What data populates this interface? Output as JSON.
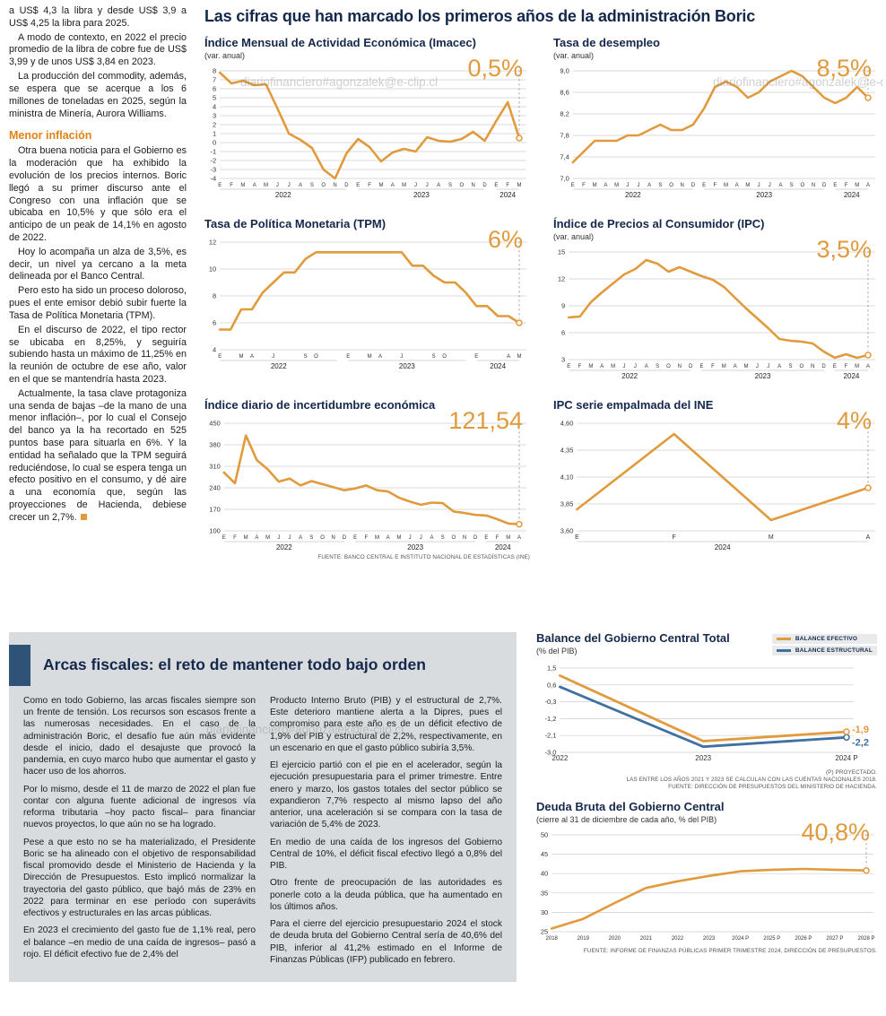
{
  "watermark": "diariofinanciero#agonzalek@e-clip.cl",
  "accent_color": "#E19A3C",
  "blue_color": "#3F6FA3",
  "page": {
    "main_title": "Las cifras que han marcado los primeros años de la administración Boric"
  },
  "left_column": {
    "paragraphs_top": [
      "a US$ 4,3 la libra y desde US$ 3,9 a US$ 4,25 la libra para 2025.",
      "A modo de contexto, en 2022 el precio promedio de la libra de cobre fue de US$ 3,99 y de unos US$ 3,84 en 2023.",
      "La producción del commodity, además, se espera que se acerque a los 6 millones de toneladas en 2025, según la ministra de Minería, Aurora Williams."
    ],
    "heading": "Menor inflación",
    "paragraphs_bottom": [
      "Otra buena noticia para el Gobierno es la moderación que ha exhibido la evolución de los precios internos. Boric llegó a su primer discurso ante el Congreso con una inflación que se ubicaba en 10,5% y que sólo era el anticipo de un peak de 14,1% en agosto de 2022.",
      "Hoy lo acompaña un alza de 3,5%, es decir, un nivel ya cercano a la meta delineada por el Banco Central.",
      "Pero esto ha sido un proceso doloroso, pues el ente emisor debió subir fuerte la Tasa de Política Monetaria (TPM).",
      "En el discurso de 2022, el tipo rector se ubicaba en 8,25%, y seguiría subiendo hasta un máximo de 11,25% en la reunión de octubre de ese año, valor en el que se mantendría hasta 2023.",
      "Actualmente, la tasa clave protagoniza una senda de bajas –de la mano de una menor inflación–, por lo cual el Consejo del banco ya la ha recortado en 525 puntos base para situarla en 6%. Y la entidad ha señalado que la TPM seguirá reduciéndose, lo cual se espera tenga un efecto positivo en el consumo, y dé aire a una economía que, según las proyecciones de Hacienda, debiese crecer un 2,7%."
    ]
  },
  "fiscal_section": {
    "heading": "Arcas fiscales: el reto de mantener todo bajo orden",
    "col1": [
      "Como en todo Gobierno, las arcas fiscales siempre son un frente de tensión. Los recursos son escasos frente a las numerosas necesidades. En el caso de la administración Boric, el desafío fue aún más evidente desde el inicio, dado el desajuste que provocó la pandemia, en cuyo marco hubo que aumentar el gasto y hacer uso de los ahorros.",
      "Por lo mismo, desde el 11 de marzo de 2022 el plan fue contar con alguna fuente adicional de ingresos vía reforma tributaria –hoy pacto fiscal– para financiar nuevos proyectos, lo que aún no se ha logrado.",
      "Pese a que esto no se ha materializado, el Presidente Boric se ha alineado con el objetivo de responsabilidad fiscal promovido desde el Ministerio de Hacienda y la Dirección de Presupuestos. Esto implicó normalizar la trayectoria del gasto público, que bajó más de 23% en 2022 para terminar en ese período con superávits efectivos y estructurales en las arcas públicas.",
      "En 2023 el crecimiento del gasto fue de 1,1% real, pero el balance –en medio de una caída de ingresos– pasó a rojo. El déficit efectivo fue de 2,4% del"
    ],
    "col2": [
      "Producto Interno Bruto (PIB) y el estructural de 2,7%. Este deterioro mantiene alerta a la Dipres, pues el compromiso para este año es de un déficit efectivo de 1,9% del PIB y estructural de 2,2%, respectivamente, en un escenario en que el gasto público subiría 3,5%.",
      "El ejercicio partió con el pie en el acelerador, según la ejecución presupuestaria para el primer trimestre. Entre enero y marzo, los gastos totales del sector público se expandieron 7,7% respecto al mismo lapso del año anterior, una aceleración si se compara con la tasa de variación de 5,4% de 2023.",
      "En medio de una caída de los ingresos del Gobierno Central de 10%, el déficit fiscal efectivo llegó a 0,8% del PIB.",
      "Otro frente de preocupación de las autoridades es ponerle coto a la deuda pública, que ha aumentado en los últimos años.",
      "Para el cierre del ejercicio presupuestario 2024 el stock de deuda bruta del Gobierno Central sería de 40,6% del PIB, inferior al 41,2% estimado en el Informe de Finanzas Públicas (IFP) publicado en febrero."
    ]
  },
  "chart_data": [
    {
      "type": "line",
      "title": "Índice Mensual de Actividad Económica (Imacec)",
      "subtitle": "(var. anual)",
      "value_label": "0,5%",
      "color": "#E19A3C",
      "ymin": -4,
      "ymax": 8,
      "ytick_values": [
        8,
        7,
        6,
        5,
        4,
        3,
        2,
        1,
        0,
        -1,
        -2,
        -3,
        -4
      ],
      "ytick_labels": [
        "8",
        "7",
        "6",
        "5",
        "4",
        "3",
        "2",
        "1",
        "0",
        "-1",
        "-2",
        "-3",
        "-4"
      ],
      "x_labels": [
        "E",
        "F",
        "M",
        "A",
        "M",
        "J",
        "J",
        "A",
        "S",
        "O",
        "N",
        "D",
        "E",
        "F",
        "M",
        "A",
        "M",
        "J",
        "J",
        "A",
        "S",
        "O",
        "N",
        "D",
        "E",
        "F",
        "M"
      ],
      "year_groups": [
        {
          "label": "2022",
          "start": 0,
          "end": 11
        },
        {
          "label": "2023",
          "start": 12,
          "end": 23
        },
        {
          "label": "2024",
          "start": 24,
          "end": 26
        }
      ],
      "series": [
        {
          "name": "Imacec var. anual",
          "values": [
            7.8,
            6.6,
            6.9,
            6.4,
            6.5,
            3.8,
            1.0,
            0.3,
            -0.6,
            -3.0,
            -4.0,
            -1.2,
            0.4,
            -0.5,
            -2.1,
            -1.1,
            -0.7,
            -1.0,
            0.6,
            0.2,
            0.1,
            0.4,
            1.2,
            0.2,
            2.4,
            4.5,
            0.5
          ]
        }
      ],
      "end_line": true,
      "end_marker": true
    },
    {
      "type": "line",
      "title": "Tasa de desempleo",
      "subtitle": "(var. anual)",
      "value_label": "8,5%",
      "color": "#E19A3C",
      "ymin": 7.0,
      "ymax": 9.0,
      "ytick_values": [
        9.0,
        8.6,
        8.2,
        7.8,
        7.4,
        7.0
      ],
      "ytick_labels": [
        "9,0",
        "8,6",
        "8,2",
        "7,8",
        "7,4",
        "7,0"
      ],
      "x_labels": [
        "E",
        "F",
        "M",
        "A",
        "M",
        "J",
        "J",
        "A",
        "S",
        "O",
        "N",
        "D",
        "E",
        "F",
        "M",
        "A",
        "M",
        "J",
        "J",
        "A",
        "S",
        "O",
        "N",
        "D",
        "E",
        "F",
        "M",
        "A"
      ],
      "year_groups": [
        {
          "label": "2022",
          "start": 0,
          "end": 11
        },
        {
          "label": "2023",
          "start": 12,
          "end": 23
        },
        {
          "label": "2024",
          "start": 24,
          "end": 27
        }
      ],
      "series": [
        {
          "name": "Tasa de desempleo",
          "values": [
            7.3,
            7.5,
            7.7,
            7.7,
            7.7,
            7.8,
            7.8,
            7.9,
            8.0,
            7.9,
            7.9,
            8.0,
            8.3,
            8.7,
            8.8,
            8.7,
            8.5,
            8.6,
            8.8,
            8.9,
            9.0,
            8.9,
            8.7,
            8.5,
            8.4,
            8.5,
            8.7,
            8.5
          ]
        }
      ],
      "end_line": true,
      "end_marker": true
    },
    {
      "type": "line",
      "title": "Tasa de Política Monetaria (TPM)",
      "value_label": "6%",
      "color": "#E19A3C",
      "ymin": 4,
      "ymax": 12,
      "ytick_values": [
        12,
        10,
        8,
        6,
        4
      ],
      "ytick_labels": [
        "12",
        "10",
        "8",
        "6",
        "4"
      ],
      "x_labels": [
        "E",
        "",
        "M",
        "A",
        "",
        "J",
        "",
        "",
        "S",
        "O",
        "",
        "",
        "E",
        "",
        "M",
        "A",
        "",
        "J",
        "",
        "",
        "S",
        "O",
        "",
        "",
        "E",
        "",
        "",
        "A",
        "M"
      ],
      "year_groups": [
        {
          "label": "2022",
          "start": 0,
          "end": 11
        },
        {
          "label": "2023",
          "start": 12,
          "end": 23
        },
        {
          "label": "2024",
          "start": 24,
          "end": 28
        }
      ],
      "series": [
        {
          "name": "TPM",
          "values": [
            5.5,
            5.5,
            7.0,
            7.0,
            8.25,
            9.0,
            9.75,
            9.75,
            10.75,
            11.25,
            11.25,
            11.25,
            11.25,
            11.25,
            11.25,
            11.25,
            11.25,
            11.25,
            10.25,
            10.25,
            9.5,
            9.0,
            9.0,
            8.25,
            7.25,
            7.25,
            6.5,
            6.5,
            6.0
          ]
        }
      ],
      "end_line": true,
      "end_marker": true
    },
    {
      "type": "line",
      "title": "Índice de Precios al Consumidor (IPC)",
      "subtitle": "(var. anual)",
      "value_label": "3,5%",
      "color": "#E19A3C",
      "ymin": 3,
      "ymax": 15,
      "ytick_values": [
        15,
        12,
        9,
        6,
        3
      ],
      "ytick_labels": [
        "15",
        "12",
        "9",
        "6",
        "3"
      ],
      "x_labels": [
        "E",
        "F",
        "M",
        "A",
        "M",
        "J",
        "J",
        "A",
        "S",
        "O",
        "N",
        "D",
        "E",
        "F",
        "M",
        "A",
        "M",
        "J",
        "J",
        "A",
        "S",
        "O",
        "N",
        "D",
        "E",
        "F",
        "M",
        "A"
      ],
      "year_groups": [
        {
          "label": "2022",
          "start": 0,
          "end": 11
        },
        {
          "label": "2023",
          "start": 12,
          "end": 23
        },
        {
          "label": "2024",
          "start": 24,
          "end": 27
        }
      ],
      "series": [
        {
          "name": "IPC var. anual",
          "values": [
            7.7,
            7.8,
            9.4,
            10.5,
            11.5,
            12.5,
            13.1,
            14.1,
            13.7,
            12.8,
            13.3,
            12.8,
            12.3,
            11.9,
            11.1,
            9.9,
            8.7,
            7.6,
            6.5,
            5.3,
            5.1,
            5.0,
            4.8,
            3.9,
            3.2,
            3.6,
            3.2,
            3.5
          ]
        }
      ],
      "end_line": true,
      "end_marker": true
    },
    {
      "type": "line",
      "title": "Índice diario de incertidumbre económica",
      "value_label": "121,54",
      "color": "#E19A3C",
      "ymin": 100,
      "ymax": 450,
      "ytick_values": [
        450,
        380,
        310,
        240,
        170,
        100
      ],
      "ytick_labels": [
        "450",
        "380",
        "310",
        "240",
        "170",
        "100"
      ],
      "x_labels": [
        "E",
        "F",
        "M",
        "A",
        "M",
        "J",
        "J",
        "A",
        "S",
        "O",
        "N",
        "D",
        "E",
        "F",
        "M",
        "A",
        "M",
        "J",
        "J",
        "A",
        "S",
        "O",
        "N",
        "D",
        "E",
        "F",
        "M",
        "A"
      ],
      "year_groups": [
        {
          "label": "2022",
          "start": 0,
          "end": 11
        },
        {
          "label": "2023",
          "start": 12,
          "end": 23
        },
        {
          "label": "2024",
          "start": 24,
          "end": 27
        }
      ],
      "series": [
        {
          "name": "Índice de incertidumbre",
          "values": [
            290,
            255,
            410,
            330,
            300,
            260,
            270,
            248,
            262,
            252,
            242,
            232,
            238,
            248,
            232,
            228,
            208,
            195,
            185,
            192,
            190,
            163,
            158,
            152,
            150,
            138,
            124,
            121.54
          ]
        }
      ],
      "end_line": true,
      "end_marker": true,
      "footnote": "FUENTE: BANCO CENTRAL E INSTITUTO NACIONAL DE ESTADÍSTICAS (INE)"
    },
    {
      "type": "line",
      "title": "IPC serie empalmada del INE",
      "value_label": "4%",
      "color": "#E19A3C",
      "ymin": 3.6,
      "ymax": 4.6,
      "ytick_values": [
        4.6,
        4.35,
        4.1,
        3.85,
        3.6
      ],
      "ytick_labels": [
        "4,60",
        "4,35",
        "4,10",
        "3,85",
        "3,60"
      ],
      "x_labels": [
        "E",
        "F",
        "M",
        "A"
      ],
      "x_font": 7,
      "year_groups": [
        {
          "label": "2024",
          "start": 0,
          "end": 3
        }
      ],
      "series": [
        {
          "name": "IPC serie empalmada",
          "values": [
            3.8,
            4.5,
            3.7,
            4.0
          ]
        }
      ],
      "end_line": true,
      "end_marker": true
    },
    {
      "type": "line",
      "title": "Balance del Gobierno Central Total",
      "subtitle": "(% del PIB)",
      "color": "#E19A3C",
      "ymin": -3.0,
      "ymax": 1.5,
      "ytick_values": [
        1.5,
        0.6,
        -0.3,
        -1.2,
        -2.1,
        -3.0
      ],
      "ytick_labels": [
        "1,5",
        "0,6",
        "-0,3",
        "-1,2",
        "-2,1",
        "-3,0"
      ],
      "x_labels": [
        "2022",
        "2023",
        "2024 P"
      ],
      "x_font": 8,
      "legend": [
        {
          "label": "BALANCE EFECTIVO",
          "color": "#E19A3C"
        },
        {
          "label": "BALANCE ESTRUCTURAL",
          "color": "#3F6FA3"
        }
      ],
      "series": [
        {
          "name": "BALANCE ESTRUCTURAL",
          "color": "#3F6FA3",
          "values": [
            0.5,
            -2.7,
            -2.2
          ],
          "end_label": "-2,2",
          "label_dy": 6
        },
        {
          "name": "BALANCE EFECTIVO",
          "color": "#E19A3C",
          "values": [
            1.1,
            -2.4,
            -1.9
          ],
          "end_label": "-1,9",
          "label_dy": -2
        }
      ],
      "stroke": 2.8,
      "end_marker": true,
      "footnotes": [
        "(P) PROYECTADO.",
        "LAS ENTRE LOS AÑOS 2021 Y 2023 SE CALCULAN CON LAS CUENTAS NACIONALES 2018.",
        "FUENTE: DIRECCIÓN DE PRESUPUESTOS DEL MINISTERIO DE HACIENDA."
      ]
    },
    {
      "type": "line",
      "title": "Deuda Bruta del Gobierno Central",
      "subtitle": "(cierre al 31 de diciembre de cada año, % del PIB)",
      "value_label": "40,8%",
      "color": "#E19A3C",
      "ymin": 25,
      "ymax": 50,
      "ytick_values": [
        50,
        45,
        40,
        35,
        30,
        25
      ],
      "ytick_labels": [
        "50",
        "45",
        "40",
        "35",
        "30",
        "25"
      ],
      "x_labels": [
        "2018",
        "2019",
        "2020",
        "2021",
        "2022",
        "2023",
        "2024 P",
        "2025 P",
        "2026 P",
        "2027 P",
        "2028 P"
      ],
      "x_font": 6,
      "series": [
        {
          "name": "Deuda bruta",
          "values": [
            25.8,
            28.3,
            32.4,
            36.3,
            38.0,
            39.4,
            40.6,
            41.0,
            41.2,
            41.0,
            40.8
          ]
        }
      ],
      "end_line": true,
      "end_marker": true,
      "footnote": "FUENTE: INFORME DE FINANZAS PÚBLICAS PRIMER TRIMESTRE 2024, DIRECCIÓN DE PRESUPUESTOS."
    }
  ]
}
